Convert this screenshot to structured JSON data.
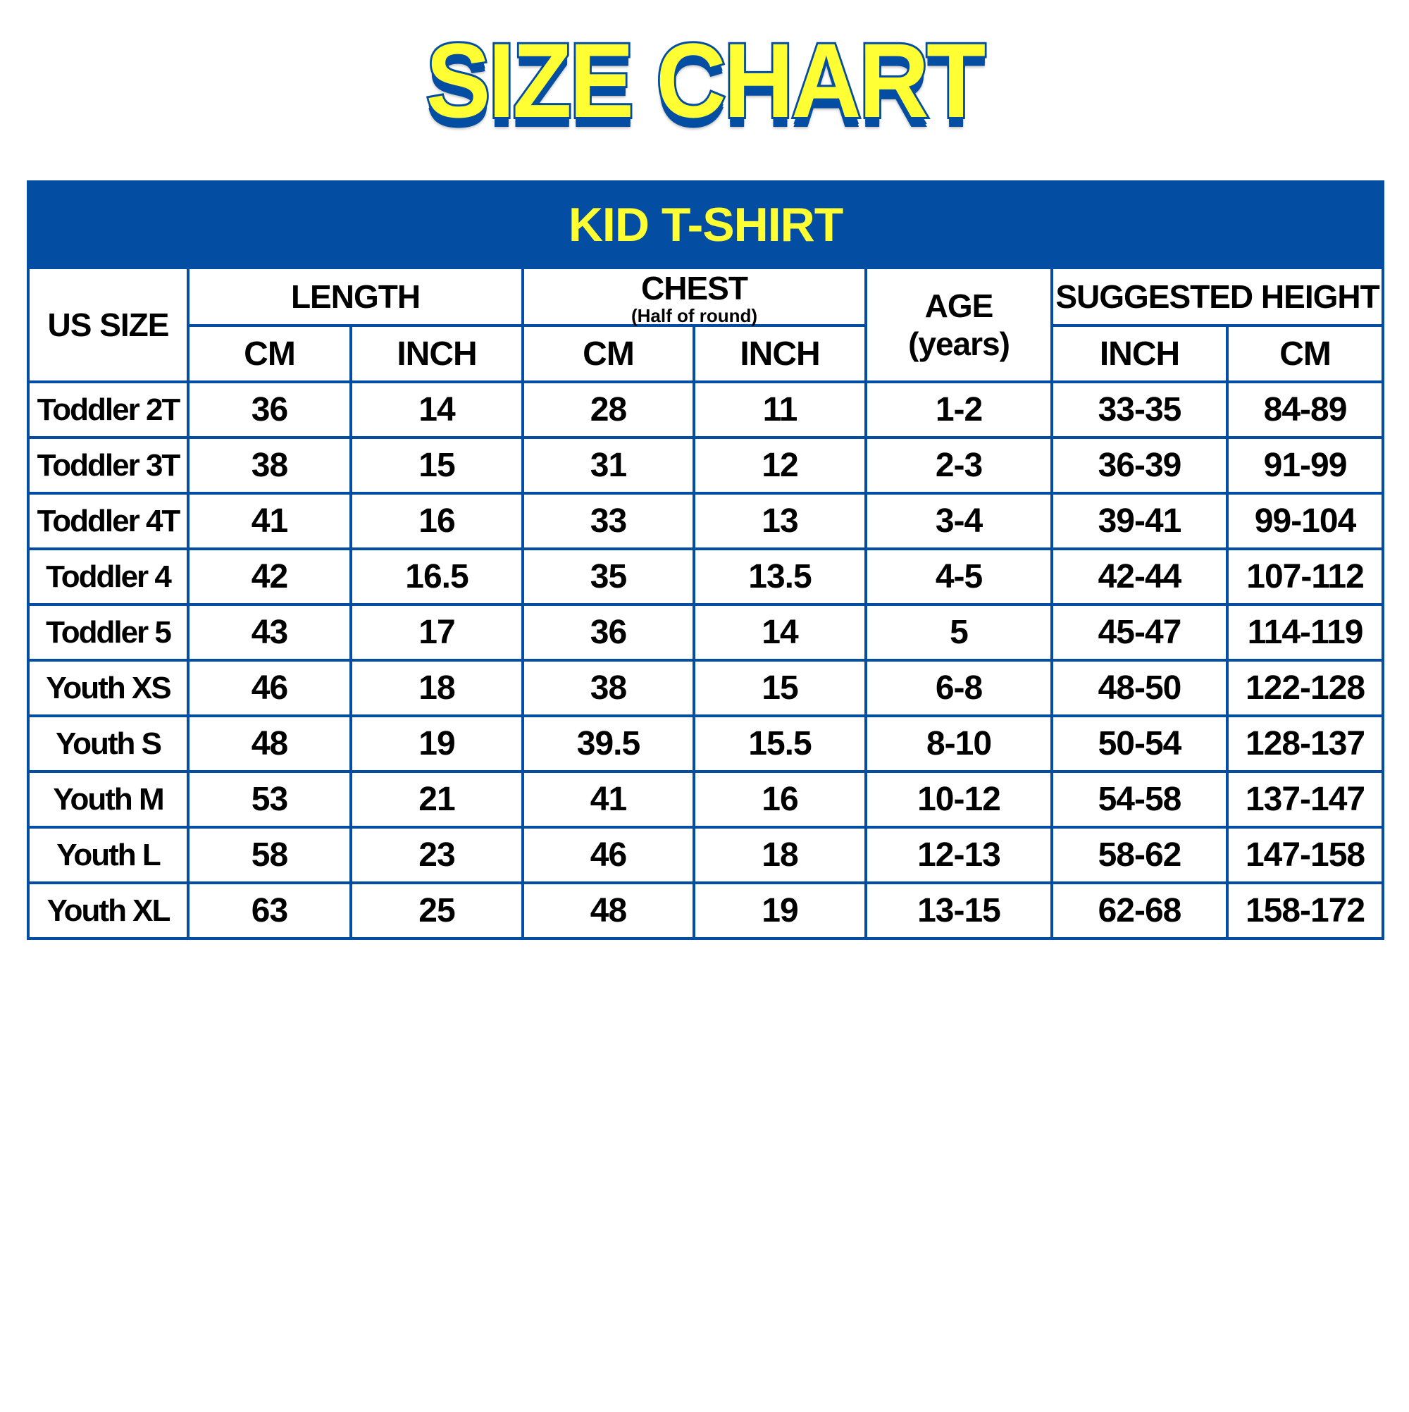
{
  "title": "SIZE CHART",
  "table": {
    "title": "KID T-SHIRT",
    "headers": {
      "us_size": "US SIZE",
      "length": "LENGTH",
      "chest": "CHEST",
      "chest_note": "(Half of round)",
      "age": "AGE",
      "age_unit": "(years)",
      "height": "SUGGESTED HEIGHT",
      "length_cm": "CM",
      "length_inch": "INCH",
      "chest_cm": "CM",
      "chest_inch": "INCH",
      "height_inch": "INCH",
      "height_cm": "CM"
    },
    "rows": [
      [
        "Toddler 2T",
        "36",
        "14",
        "28",
        "11",
        "1-2",
        "33-35",
        "84-89"
      ],
      [
        "Toddler 3T",
        "38",
        "15",
        "31",
        "12",
        "2-3",
        "36-39",
        "91-99"
      ],
      [
        "Toddler 4T",
        "41",
        "16",
        "33",
        "13",
        "3-4",
        "39-41",
        "99-104"
      ],
      [
        "Toddler 4",
        "42",
        "16.5",
        "35",
        "13.5",
        "4-5",
        "42-44",
        "107-112"
      ],
      [
        "Toddler 5",
        "43",
        "17",
        "36",
        "14",
        "5",
        "45-47",
        "114-119"
      ],
      [
        "Youth XS",
        "46",
        "18",
        "38",
        "15",
        "6-8",
        "48-50",
        "122-128"
      ],
      [
        "Youth S",
        "48",
        "19",
        "39.5",
        "15.5",
        "8-10",
        "50-54",
        "128-137"
      ],
      [
        "Youth M",
        "53",
        "21",
        "41",
        "16",
        "10-12",
        "54-58",
        "137-147"
      ],
      [
        "Youth L",
        "58",
        "23",
        "46",
        "18",
        "12-13",
        "58-62",
        "147-158"
      ],
      [
        "Youth XL",
        "63",
        "25",
        "48",
        "19",
        "13-15",
        "62-68",
        "158-172"
      ]
    ]
  },
  "colors": {
    "brand_blue": "#034ea2",
    "yellow": "#ffff33"
  }
}
